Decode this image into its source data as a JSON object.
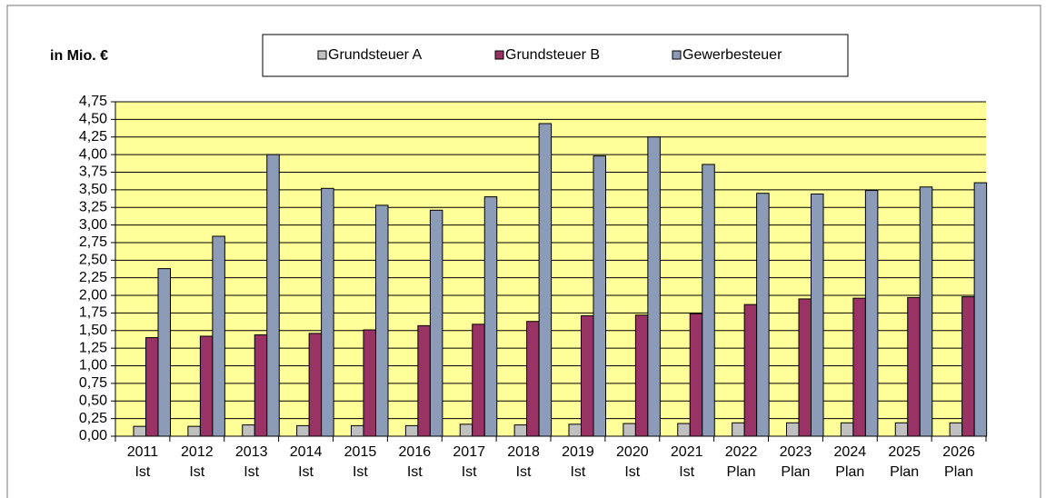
{
  "chart_data": {
    "type": "bar",
    "y_label": "in Mio. €",
    "categories": [
      "2011 Ist",
      "2012 Ist",
      "2013 Ist",
      "2014 Ist",
      "2015 Ist",
      "2016 Ist",
      "2017 Ist",
      "2018 Ist",
      "2019 Ist",
      "2020 Ist",
      "2021 Ist",
      "2022 Plan",
      "2023 Plan",
      "2024 Plan",
      "2025 Plan",
      "2026 Plan"
    ],
    "series": [
      {
        "name": "Grundsteuer A",
        "color": "#c0c0c0",
        "values": [
          0.14,
          0.14,
          0.16,
          0.15,
          0.15,
          0.15,
          0.17,
          0.16,
          0.17,
          0.18,
          0.18,
          0.19,
          0.19,
          0.19,
          0.19,
          0.19
        ]
      },
      {
        "name": "Grundsteuer B",
        "color": "#993366",
        "values": [
          1.4,
          1.42,
          1.44,
          1.46,
          1.51,
          1.57,
          1.59,
          1.63,
          1.71,
          1.72,
          1.74,
          1.87,
          1.95,
          1.96,
          1.97,
          1.98
        ]
      },
      {
        "name": "Gewerbesteuer",
        "color": "#8c9cb8",
        "values": [
          2.38,
          2.84,
          4.0,
          3.52,
          3.28,
          3.21,
          3.4,
          4.44,
          3.98,
          4.25,
          3.86,
          3.45,
          3.44,
          3.49,
          3.54,
          3.6
        ]
      }
    ],
    "ylim": [
      0,
      4.75
    ],
    "yticks": [
      {
        "value": 0,
        "label": "0,00"
      },
      {
        "value": 0.25,
        "label": "0,25"
      },
      {
        "value": 0.5,
        "label": "0,50"
      },
      {
        "value": 0.75,
        "label": "0,75"
      },
      {
        "value": 1,
        "label": "1,00"
      },
      {
        "value": 1.25,
        "label": "1,25"
      },
      {
        "value": 1.5,
        "label": "1,50"
      },
      {
        "value": 1.75,
        "label": "1,75"
      },
      {
        "value": 2,
        "label": "2,00"
      },
      {
        "value": 2.25,
        "label": "2,25"
      },
      {
        "value": 2.5,
        "label": "2,50"
      },
      {
        "value": 2.75,
        "label": "2,75"
      },
      {
        "value": 3,
        "label": "3,00"
      },
      {
        "value": 3.25,
        "label": "3,25"
      },
      {
        "value": 3.5,
        "label": "3,50"
      },
      {
        "value": 3.75,
        "label": "3,75"
      },
      {
        "value": 4,
        "label": "4,00"
      },
      {
        "value": 4.25,
        "label": "4,25"
      },
      {
        "value": 4.5,
        "label": "4,50"
      },
      {
        "value": 4.75,
        "label": "4,75"
      }
    ],
    "grid": true,
    "background": "#ffff99"
  }
}
